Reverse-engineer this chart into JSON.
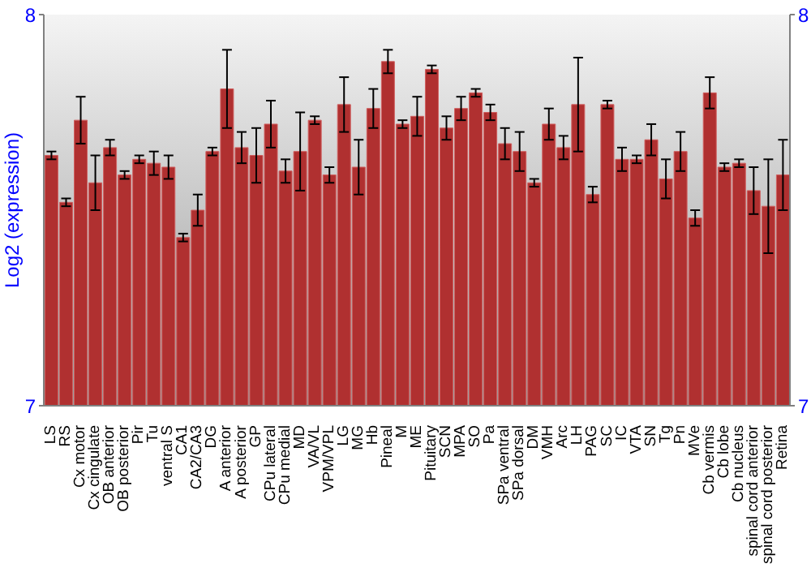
{
  "chart_data": {
    "type": "bar",
    "ylabel": "Log2 (expression)",
    "categories": [
      "LS",
      "RS",
      "Cx motor",
      "Cx cingulate",
      "OB anterior",
      "OB posterior",
      "Pir",
      "Tu",
      "ventral S",
      "CA1",
      "CA2/CA3",
      "DG",
      "A anterior",
      "A posterior",
      "GP",
      "CPu lateral",
      "CPu medial",
      "MD",
      "VA/VL",
      "VPM/VPL",
      "LG",
      "MG",
      "Hb",
      "Pineal",
      "M",
      "ME",
      "Pituitary",
      "SCN",
      "MPA",
      "SO",
      "Pa",
      "SPa ventral",
      "SPa dorsal",
      "DM",
      "VMH",
      "Arc",
      "LH",
      "PAG",
      "SC",
      "IC",
      "VTA",
      "SN",
      "Tg",
      "Pn",
      "MVe",
      "Cb vermis",
      "Cb lobe",
      "Cb nucleus",
      "spinal cord anterior",
      "spinal cord posterior",
      "Retina"
    ],
    "values": [
      7.64,
      7.52,
      7.73,
      7.57,
      7.66,
      7.59,
      7.63,
      7.62,
      7.61,
      7.43,
      7.5,
      7.65,
      7.81,
      7.66,
      7.64,
      7.72,
      7.6,
      7.65,
      7.73,
      7.59,
      7.77,
      7.61,
      7.76,
      7.88,
      7.72,
      7.74,
      7.86,
      7.71,
      7.76,
      7.8,
      7.75,
      7.67,
      7.65,
      7.57,
      7.72,
      7.66,
      7.77,
      7.54,
      7.77,
      7.63,
      7.63,
      7.68,
      7.58,
      7.65,
      7.48,
      7.8,
      7.61,
      7.62,
      7.55,
      7.51,
      7.59
    ],
    "errors": [
      0.01,
      0.01,
      0.06,
      0.07,
      0.02,
      0.01,
      0.01,
      0.03,
      0.03,
      0.01,
      0.04,
      0.01,
      0.1,
      0.04,
      0.07,
      0.06,
      0.03,
      0.1,
      0.01,
      0.02,
      0.07,
      0.07,
      0.05,
      0.03,
      0.01,
      0.05,
      0.01,
      0.03,
      0.03,
      0.01,
      0.02,
      0.04,
      0.05,
      0.01,
      0.04,
      0.03,
      0.12,
      0.02,
      0.01,
      0.03,
      0.01,
      0.04,
      0.05,
      0.05,
      0.02,
      0.04,
      0.01,
      0.01,
      0.06,
      0.12,
      0.09
    ],
    "color": "#b03030",
    "ylim": [
      7,
      8
    ],
    "yticks": [
      7,
      8
    ],
    "y2lim": [
      7,
      8
    ],
    "y2ticks": [
      7,
      8
    ]
  }
}
